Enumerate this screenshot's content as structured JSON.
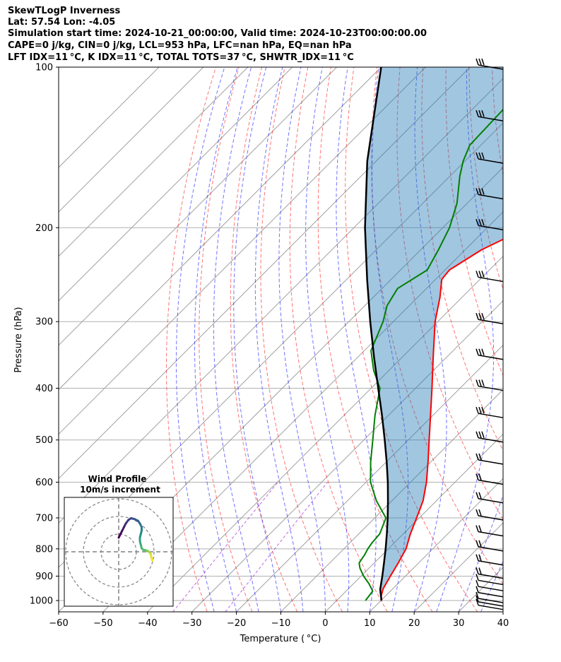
{
  "header": {
    "line1": "SkewTLogP Inverness",
    "line2": "Lat: 57.54   Lon: -4.05",
    "line3": "Simulation start time: 2024-10-21_00:00:00, Valid time: 2024-10-23T00:00:00.00",
    "line4": "CAPE=0 j/kg, CIN=0 j/kg, LCL=953 hPa, LFC=nan hPa, EQ=nan hPa",
    "line5": "LFT IDX=11 °C, K IDX=11 °C, TOTAL TOTS=37 °C, SHWTR_IDX=11 °C"
  },
  "chart_data": {
    "type": "line",
    "xlabel": "Temperature ( °C)",
    "ylabel": "Pressure (hPa)",
    "xlim": [
      -60,
      40
    ],
    "ylim": [
      1050,
      100
    ],
    "y_scale": "log",
    "skew": "skew-T",
    "x_ticks": [
      "−60",
      "−50",
      "−40",
      "−30",
      "−20",
      "−10",
      "0",
      "10",
      "20",
      "30",
      "40"
    ],
    "y_ticks": [
      "1000",
      "900",
      "800",
      "700",
      "600",
      "500",
      "400",
      "300",
      "200",
      "100"
    ],
    "series": [
      {
        "key": "temperature",
        "color": "#ff0000",
        "p": [
          1000,
          980,
          950,
          900,
          850,
          800,
          750,
          700,
          650,
          600,
          550,
          500,
          450,
          400,
          350,
          300,
          270,
          250,
          240,
          220,
          200,
          180,
          160,
          140,
          125,
          110,
          100
        ],
        "t": [
          10.1,
          9.0,
          7.8,
          6.6,
          5.4,
          4.0,
          1.6,
          -0.6,
          -3.0,
          -6.4,
          -10.6,
          -15.3,
          -20.5,
          -26.3,
          -33.0,
          -40.6,
          -45.0,
          -48.6,
          -49.0,
          -46.3,
          -41.0,
          -38.4,
          -35.0,
          -31.0,
          -28.0,
          -27.5,
          -27.0
        ]
      },
      {
        "key": "dewpoint",
        "color": "#008000",
        "p": [
          1000,
          960,
          930,
          900,
          870,
          850,
          820,
          800,
          780,
          750,
          700,
          650,
          600,
          550,
          500,
          450,
          400,
          370,
          340,
          300,
          280,
          260,
          240,
          220,
          200,
          180,
          160,
          150,
          140,
          120,
          100
        ],
        "t": [
          6.5,
          6.0,
          3.5,
          0.6,
          -2.0,
          -3.4,
          -4.0,
          -4.6,
          -5.0,
          -5.3,
          -7.5,
          -13.5,
          -19.0,
          -23.5,
          -28.0,
          -33.0,
          -38.0,
          -43.5,
          -48.5,
          -52.3,
          -55.0,
          -56.5,
          -54.0,
          -56.0,
          -58.5,
          -62.3,
          -67.8,
          -70.4,
          -72.5,
          -73.0,
          -73.5
        ]
      },
      {
        "key": "parcel",
        "color": "#000000",
        "p": [
          1000,
          953,
          900,
          850,
          800,
          750,
          700,
          650,
          600,
          550,
          500,
          450,
          400,
          350,
          300,
          250,
          200,
          150,
          100
        ],
        "t": [
          10.1,
          7.3,
          4.8,
          2.2,
          -0.6,
          -3.7,
          -7.1,
          -10.9,
          -15.1,
          -19.9,
          -25.3,
          -31.4,
          -38.4,
          -46.3,
          -55.2,
          -65.4,
          -77.5,
          -92.0,
          -110.0
        ]
      }
    ],
    "wind_barbs_p": [
      1030,
      1015,
      1000,
      975,
      950,
      925,
      900,
      850,
      800,
      750,
      700,
      650,
      600,
      550,
      500,
      450,
      400,
      350,
      300,
      250,
      200,
      175,
      150,
      125,
      100
    ],
    "hodograph": {
      "title": "Wind Profile",
      "subtitle": "10m/s increment",
      "rings_ms": [
        10,
        20,
        30
      ],
      "u": [
        19.0,
        18.5,
        18.0,
        17.0,
        16.5,
        16.0,
        15.0,
        14.0,
        13.0,
        12.5,
        12.0,
        12.0,
        12.5,
        13.0,
        13.0,
        12.0,
        11.0,
        9.0,
        7.0,
        5.5,
        4.0,
        3.0,
        2.0,
        1.0,
        0.0
      ],
      "v": [
        -5.0,
        -3.0,
        -1.0,
        0.0,
        0.5,
        0.5,
        1.0,
        1.0,
        2.0,
        4.0,
        6.0,
        8.0,
        10.0,
        12.0,
        14.0,
        16.0,
        17.5,
        18.5,
        19.0,
        18.0,
        16.0,
        14.0,
        12.0,
        10.0,
        8.0
      ]
    }
  }
}
